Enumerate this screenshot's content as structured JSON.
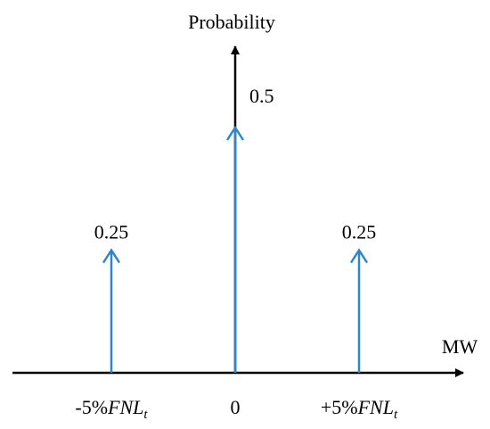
{
  "chart_data": {
    "type": "bar",
    "style": "probability-mass-impulses",
    "title": "",
    "xlabel": "MW",
    "ylabel": "Probability",
    "categories": [
      {
        "prefix": "-5%",
        "main": "FNL",
        "sub": "t"
      },
      {
        "prefix": "0",
        "main": "",
        "sub": ""
      },
      {
        "prefix": "+5%",
        "main": "FNL",
        "sub": "t"
      }
    ],
    "values": [
      0.25,
      0.5,
      0.25
    ],
    "value_labels": [
      "0.25",
      "0.5",
      "0.25"
    ],
    "ylim": [
      0,
      0.7
    ],
    "grid": false,
    "legend": "none"
  },
  "colors": {
    "impulse": "#2e86c8",
    "axis": "#000000",
    "background": "#ffffff"
  }
}
